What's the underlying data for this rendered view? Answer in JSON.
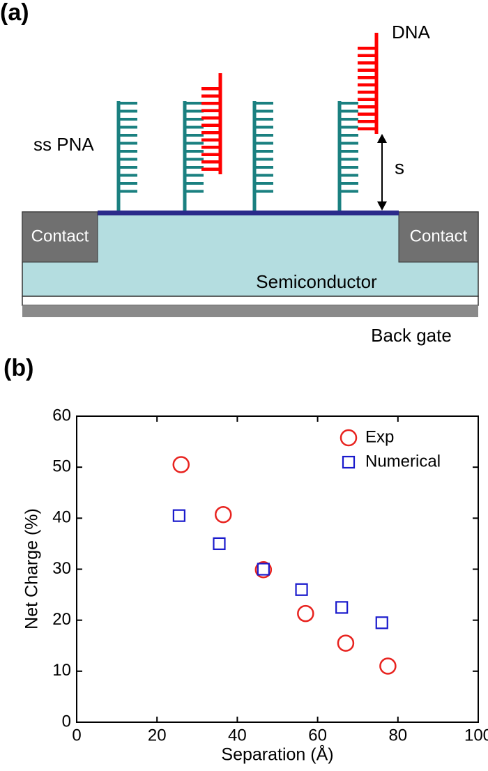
{
  "diagram": {
    "panel_label": "(a)",
    "dna_label": "DNA",
    "pna_label": "ss PNA",
    "separation_label": "s",
    "contacts": [
      "Contact",
      "Contact"
    ],
    "semiconductor_label": "Semiconductor",
    "gate_label": "Back gate"
  },
  "chart_data": {
    "type": "scatter",
    "panel_label": "(b)",
    "x_label": "Separation (Å)",
    "y_label": "Net Charge (%)",
    "xlim": [
      0,
      100
    ],
    "xticks": [
      0,
      20,
      40,
      60,
      80,
      100
    ],
    "ylim": [
      0,
      60
    ],
    "yticks": [
      0,
      10,
      20,
      30,
      40,
      50,
      60
    ],
    "legend": "upper right",
    "series": [
      {
        "name": "Exp",
        "color": "#e8231f",
        "marker": "circle",
        "x": [
          26,
          36.5,
          46.5,
          57,
          67,
          77.5
        ],
        "values": [
          50.5,
          40.7,
          29.9,
          21.3,
          15.5,
          11
        ]
      },
      {
        "name": "Numerical",
        "color": "#1a1acc",
        "marker": "square",
        "x": [
          25.5,
          35.5,
          46.5,
          56,
          66,
          76
        ],
        "values": [
          40.5,
          35,
          30,
          26,
          22.5,
          19.5
        ]
      }
    ]
  }
}
